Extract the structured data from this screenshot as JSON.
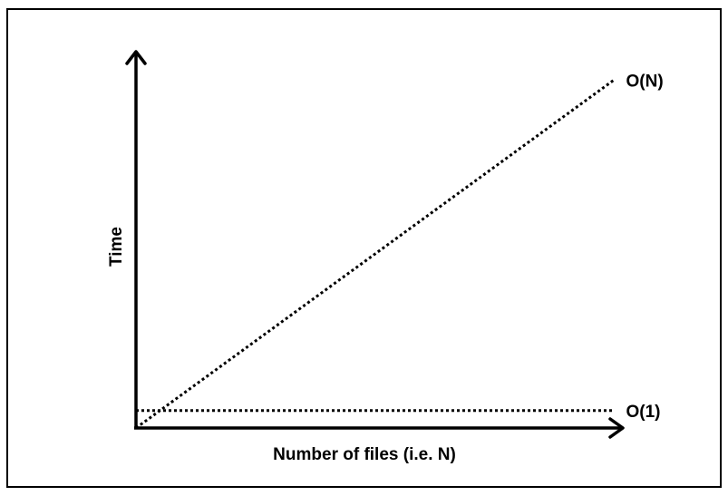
{
  "chart_data": {
    "type": "line",
    "title": "",
    "xlabel": "Number of files (i.e. N)",
    "ylabel": "Time",
    "grid": false,
    "legend": "none",
    "x": [
      0,
      1
    ],
    "series": [
      {
        "name": "O(N)",
        "values": [
          0,
          1
        ]
      },
      {
        "name": "O(1)",
        "values": [
          0.05,
          0.05
        ]
      }
    ],
    "xlim": [
      0,
      1.02
    ],
    "ylim": [
      0,
      1.08
    ],
    "colors": {
      "line": "#000000",
      "axis": "#000000",
      "frame": "#000000"
    }
  }
}
